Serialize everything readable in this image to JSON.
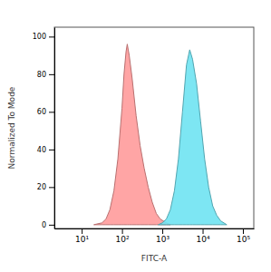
{
  "chart_data": {
    "type": "area",
    "x_label": "FITC-A",
    "y_label": "Normalized To Mode",
    "log": "x",
    "xlim": [
      2.1,
      186000
    ],
    "xticks": [
      {
        "value": 10,
        "label": "10¹"
      },
      {
        "value": 100,
        "label": "10²"
      },
      {
        "value": 1000,
        "label": "10³"
      },
      {
        "value": 10000,
        "label": "10⁴"
      },
      {
        "value": 100000,
        "label": "10⁵"
      }
    ],
    "ylim": [
      -2,
      105
    ],
    "yticks": [
      0,
      20,
      40,
      60,
      80,
      100
    ],
    "grid": false,
    "series": [
      {
        "color": "#ff9b9b",
        "x": [
          20,
          32,
          40,
          50,
          63,
          79,
          100,
          112,
          126,
          135,
          151,
          178,
          224,
          282,
          355,
          447,
          562,
          708,
          891,
          1259,
          1585
        ],
        "values": [
          0,
          1,
          3,
          8,
          18,
          35,
          62,
          80,
          92,
          96,
          90,
          78,
          58,
          42,
          30,
          20,
          12,
          6,
          3,
          1,
          0
        ]
      },
      {
        "color": "#6fe3f2",
        "x": [
          794,
          1000,
          1259,
          1585,
          1995,
          2512,
          3162,
          3981,
          4786,
          5623,
          7079,
          8913,
          11220,
          14125,
          17783,
          22387,
          28184,
          39811
        ],
        "values": [
          0,
          1,
          3,
          8,
          18,
          35,
          60,
          85,
          93,
          88,
          75,
          55,
          35,
          20,
          10,
          5,
          2,
          0
        ]
      }
    ]
  }
}
